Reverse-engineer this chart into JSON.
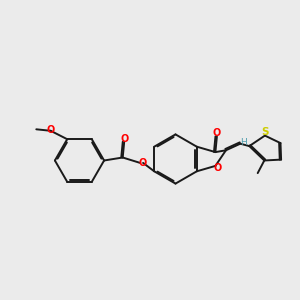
{
  "background_color": "#ebebeb",
  "bond_color": "#1a1a1a",
  "atom_colors": {
    "O": "#ff0000",
    "S": "#cccc00",
    "H": "#4a9aaa",
    "C": "#1a1a1a"
  },
  "lw": 1.4,
  "figsize": [
    3.0,
    3.0
  ],
  "dpi": 100
}
